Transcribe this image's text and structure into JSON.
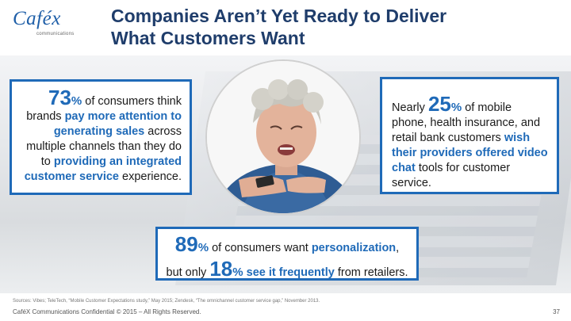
{
  "logo": {
    "text": "Caféx",
    "subtitle": "communications"
  },
  "title": {
    "line1": "Companies Aren’t Yet Ready to Deliver",
    "line2": "What Customers Want"
  },
  "stat_left": {
    "number": "73",
    "pct": "%",
    "t1": " of consumers think brands ",
    "h1": "pay more attention to generating sales",
    "t2": " across multiple channels than they do to ",
    "h2": "providing an integrated customer service",
    "t3": " experience."
  },
  "stat_right": {
    "t1": "Nearly ",
    "number": "25",
    "pct": "%",
    "t2": " of mobile phone, health insurance, and retail bank customers ",
    "h1": "wish their providers offered video chat",
    "t3": " tools for customer service."
  },
  "stat_bottom": {
    "number1": "89",
    "pct1": "%",
    "t1": " of consumers want ",
    "h1": "personalization",
    "t2": ",",
    "t3": "but only ",
    "number2": "18",
    "pct2": "%",
    "h2": "see it frequently",
    "t4": " from retailers."
  },
  "sources": "Sources: Vibes; TeleTech, “Mobile Customer Expectations study,” May 2015; Zendesk, “The omnichannel customer service gap,” November 2013.",
  "footer": "CaféX Communications Confidential © 2015 – All Rights Reserved.",
  "page_number": "37",
  "colors": {
    "accent": "#1f6ab8",
    "title": "#1f3d6b"
  },
  "photo_icon": "frustrated-woman-with-phone"
}
